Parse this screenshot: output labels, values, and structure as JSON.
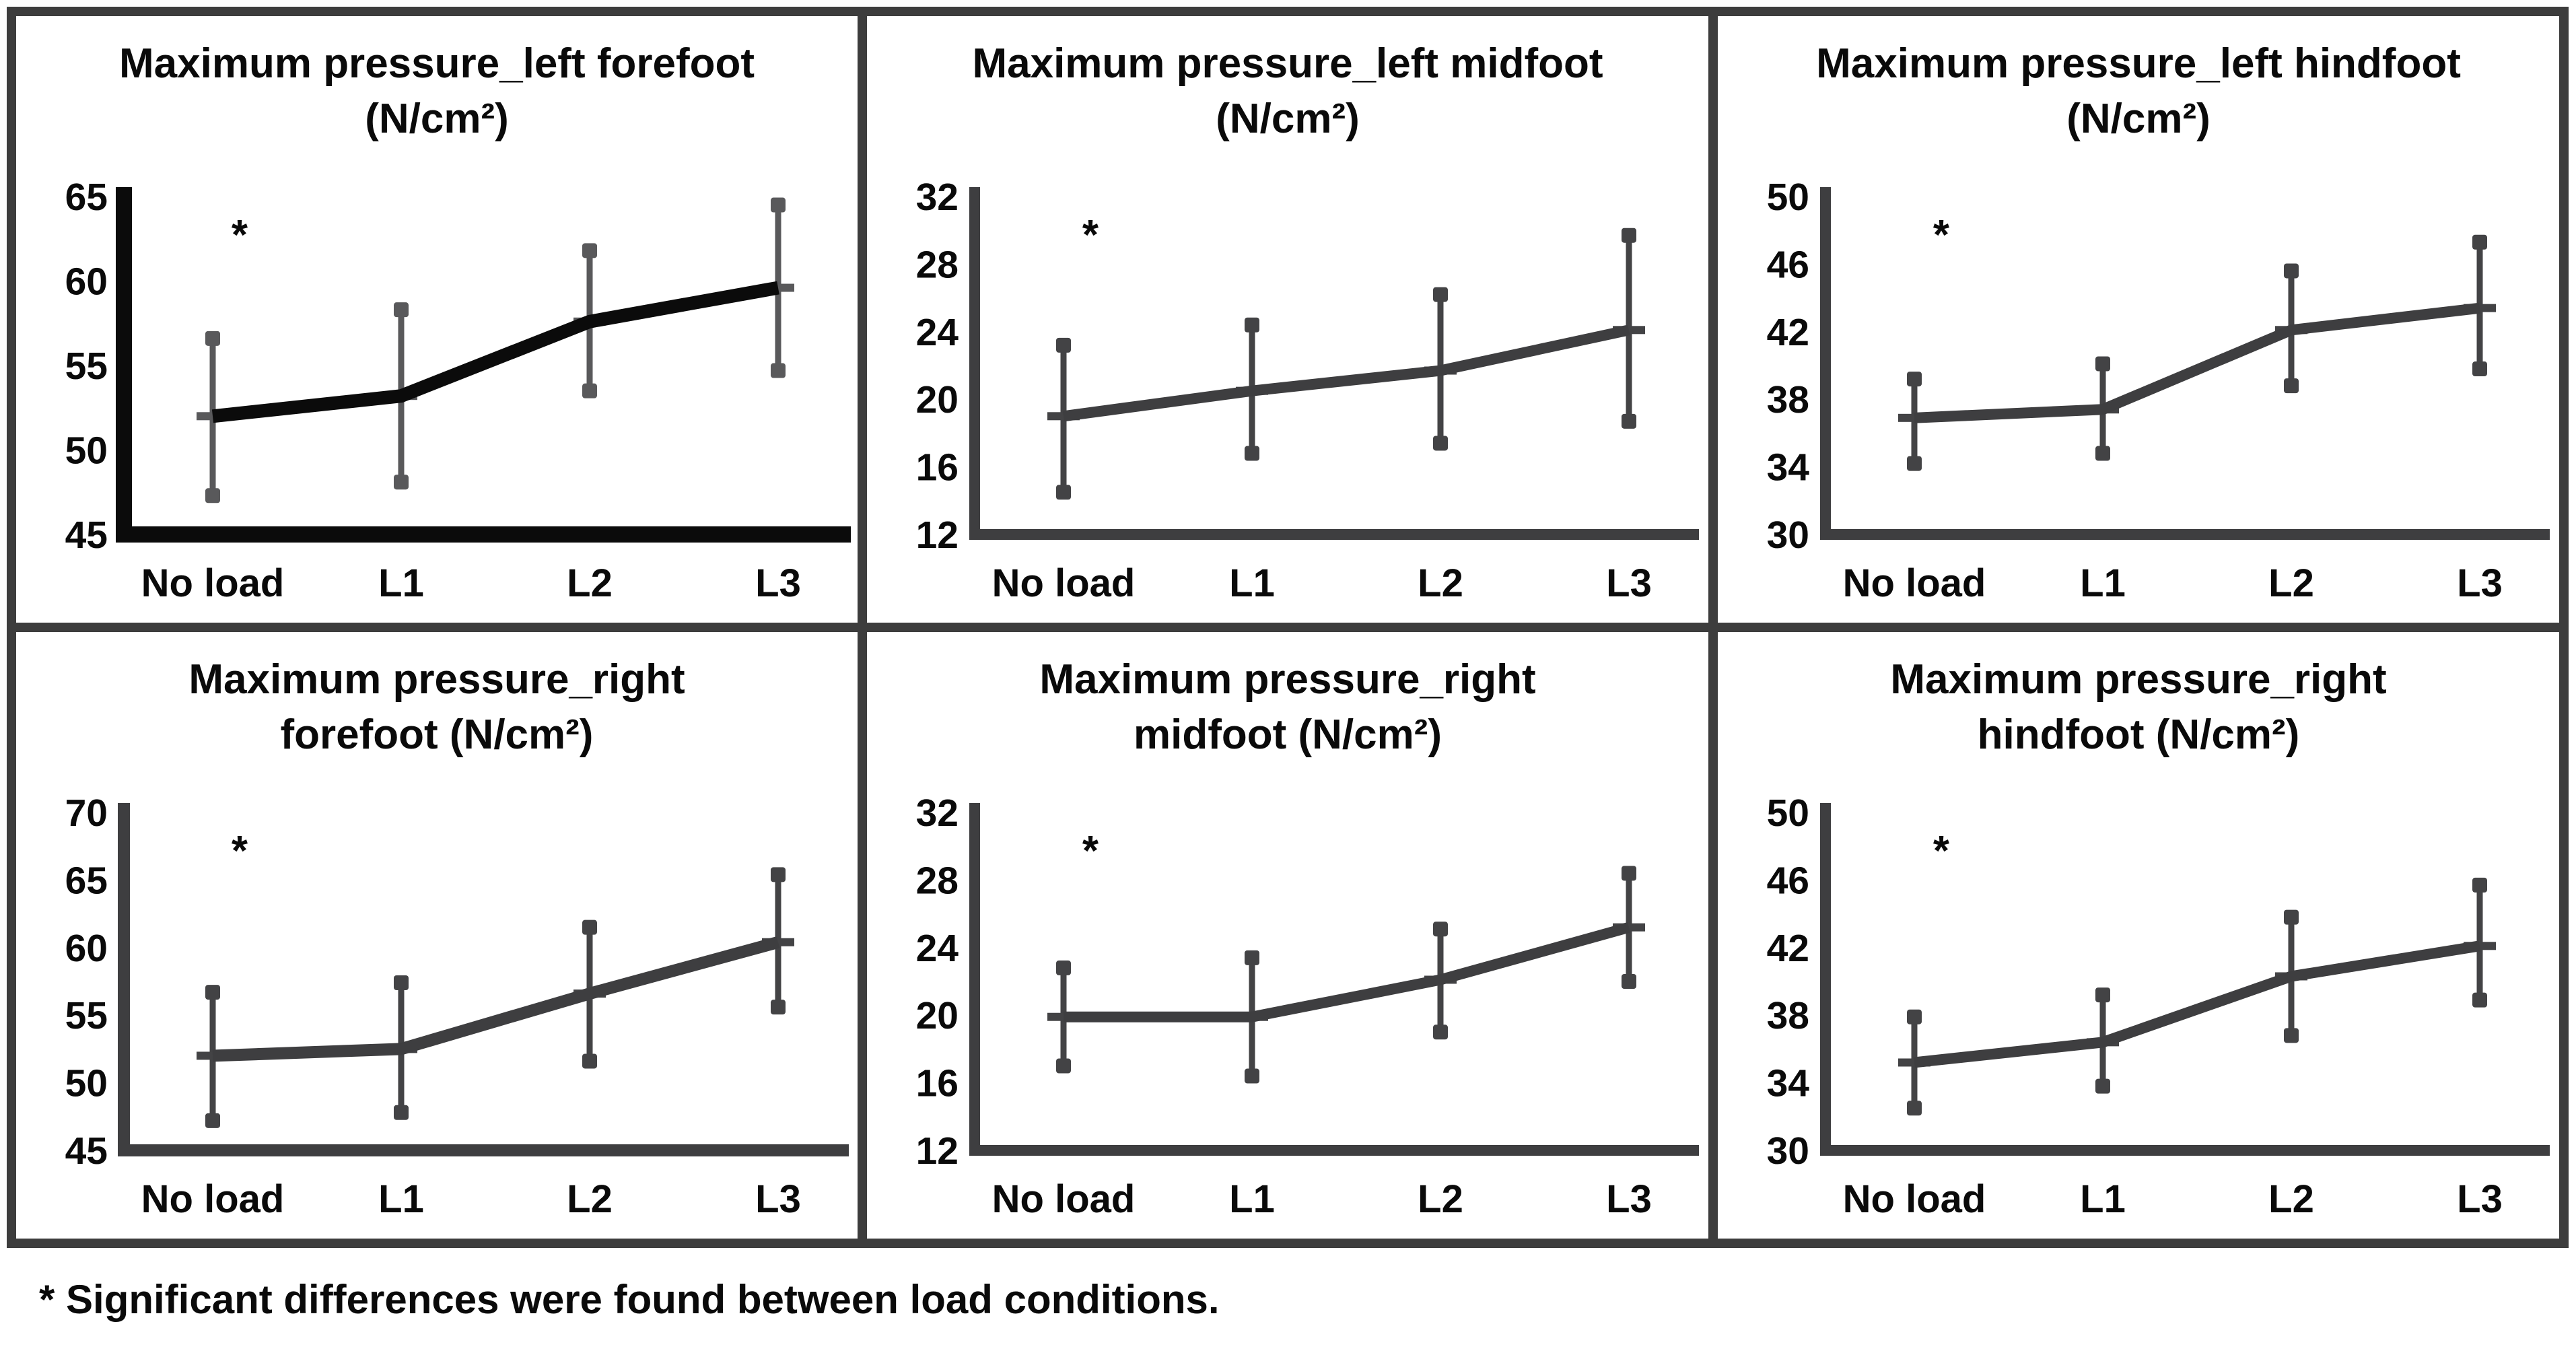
{
  "figure": {
    "background": "#ffffff",
    "border_color": "#3d3d3d",
    "footnote": "* Significant differences were found between load conditions."
  },
  "chart_data": [
    {
      "type": "line",
      "title_line1": "Maximum pressure_left forefoot",
      "title_line2": "(N/cm²)",
      "categories": [
        "No load",
        "L1",
        "L2",
        "L3"
      ],
      "series": [
        {
          "name": "mean",
          "values": [
            52.0,
            53.2,
            57.6,
            59.6
          ]
        }
      ],
      "error_low": [
        47.3,
        48.1,
        53.5,
        54.7
      ],
      "error_high": [
        56.6,
        58.3,
        61.8,
        64.5
      ],
      "ylim": [
        45,
        65
      ],
      "ytick_step": 5,
      "annotation": "*",
      "grid": "off",
      "line_color": "#0b0b0b",
      "errorbar_color": "#59595b",
      "line_width": 20,
      "axis_width": 24
    },
    {
      "type": "line",
      "title_line1": "Maximum pressure_left midfoot",
      "title_line2": "(N/cm²)",
      "categories": [
        "No load",
        "L1",
        "L2",
        "L3"
      ],
      "series": [
        {
          "name": "mean",
          "values": [
            19.0,
            20.5,
            21.7,
            24.1
          ]
        }
      ],
      "error_low": [
        14.5,
        16.8,
        17.4,
        18.7
      ],
      "error_high": [
        23.2,
        24.4,
        26.2,
        29.7
      ],
      "ylim": [
        12,
        32
      ],
      "ytick_step": 4,
      "annotation": "*",
      "grid": "off",
      "line_color": "#3e3e40",
      "errorbar_color": "#434345",
      "line_width": 16,
      "axis_width": 16
    },
    {
      "type": "line",
      "title_line1": "Maximum pressure_left hindfoot",
      "title_line2": "(N/cm²)",
      "categories": [
        "No load",
        "L1",
        "L2",
        "L3"
      ],
      "series": [
        {
          "name": "mean",
          "values": [
            36.9,
            37.4,
            42.1,
            43.4
          ]
        }
      ],
      "error_low": [
        34.2,
        34.8,
        38.8,
        39.8
      ],
      "error_high": [
        39.2,
        40.1,
        45.6,
        47.3
      ],
      "ylim": [
        30,
        50
      ],
      "ytick_step": 4,
      "annotation": "*",
      "grid": "off",
      "line_color": "#3e3e40",
      "errorbar_color": "#434345",
      "line_width": 16,
      "axis_width": 16
    },
    {
      "type": "line",
      "title_line1": "Maximum pressure_right",
      "title_line2": "forefoot (N/cm²)",
      "categories": [
        "No load",
        "L1",
        "L2",
        "L3"
      ],
      "series": [
        {
          "name": "mean",
          "values": [
            52.0,
            52.5,
            56.6,
            60.4
          ]
        }
      ],
      "error_low": [
        47.2,
        47.8,
        51.6,
        55.6
      ],
      "error_high": [
        56.7,
        57.4,
        61.5,
        65.4
      ],
      "ylim": [
        45,
        70
      ],
      "ytick_step": 5,
      "annotation": "*",
      "grid": "off",
      "line_color": "#3e3e40",
      "errorbar_color": "#434345",
      "line_width": 18,
      "axis_width": 18
    },
    {
      "type": "line",
      "title_line1": "Maximum pressure_right",
      "title_line2": "midfoot (N/cm²)",
      "categories": [
        "No load",
        "L1",
        "L2",
        "L3"
      ],
      "series": [
        {
          "name": "mean",
          "values": [
            19.9,
            19.9,
            22.1,
            25.2
          ]
        }
      ],
      "error_low": [
        17.0,
        16.4,
        19.0,
        22.0
      ],
      "error_high": [
        22.8,
        23.4,
        25.1,
        28.4
      ],
      "ylim": [
        12,
        32
      ],
      "ytick_step": 4,
      "annotation": "*",
      "grid": "off",
      "line_color": "#3e3e40",
      "errorbar_color": "#434345",
      "line_width": 16,
      "axis_width": 16
    },
    {
      "type": "line",
      "title_line1": "Maximum pressure_right",
      "title_line2": "hindfoot (N/cm²)",
      "categories": [
        "No load",
        "L1",
        "L2",
        "L3"
      ],
      "series": [
        {
          "name": "mean",
          "values": [
            35.2,
            36.4,
            40.3,
            42.1
          ]
        }
      ],
      "error_low": [
        32.5,
        33.8,
        36.8,
        38.9
      ],
      "error_high": [
        37.9,
        39.2,
        43.8,
        45.7
      ],
      "ylim": [
        30,
        50
      ],
      "ytick_step": 4,
      "annotation": "*",
      "grid": "off",
      "line_color": "#3e3e40",
      "errorbar_color": "#434345",
      "line_width": 16,
      "axis_width": 16
    }
  ]
}
